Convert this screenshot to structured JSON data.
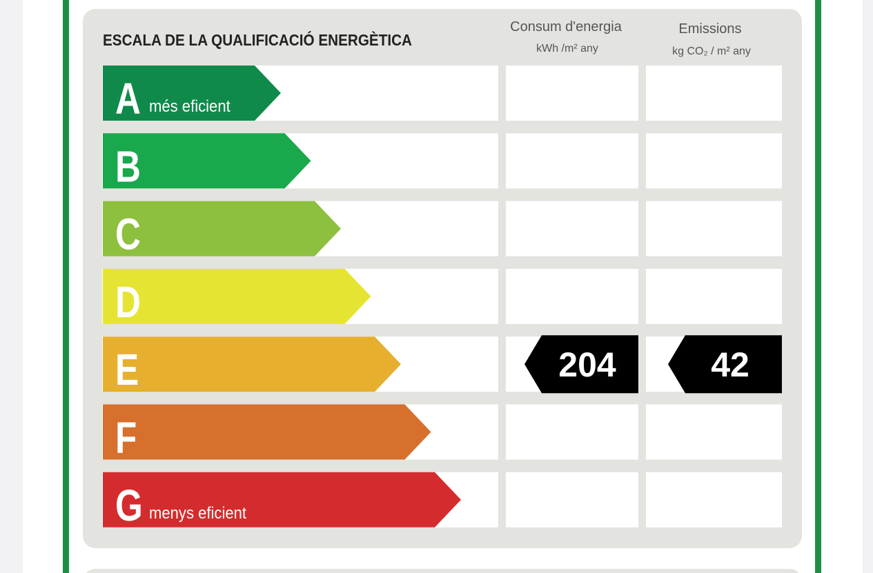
{
  "header": {
    "title": "ESCALA DE LA QUALIFICACIÓ ENERGÈTICA",
    "columns": [
      {
        "title": "Consum d'energia",
        "unit": "kWh /m² any"
      },
      {
        "title": "Emissions",
        "unit": "kg CO₂ / m² any"
      }
    ]
  },
  "rows": [
    {
      "letter": "A",
      "label": "més eficient",
      "color": "#0f8a4a"
    },
    {
      "letter": "B",
      "color": "#19a84b"
    },
    {
      "letter": "C",
      "color": "#8dc03f"
    },
    {
      "letter": "D",
      "color": "#e6e432"
    },
    {
      "letter": "E",
      "color": "#e6b02e",
      "energy": "204",
      "emissions": "42"
    },
    {
      "letter": "F",
      "color": "#d6702c"
    },
    {
      "letter": "G",
      "label": "menys eficient",
      "color": "#d42c2e"
    }
  ]
}
